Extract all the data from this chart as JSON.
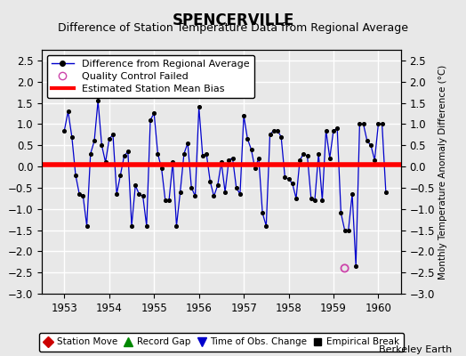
{
  "title": "SPENCERVILLE",
  "subtitle": "Difference of Station Temperature Data from Regional Average",
  "ylabel_right": "Monthly Temperature Anomaly Difference (°C)",
  "xlim": [
    1952.5,
    1960.5
  ],
  "ylim": [
    -3,
    2.75
  ],
  "yticks": [
    -3,
    -2.5,
    -2,
    -1.5,
    -1,
    -0.5,
    0,
    0.5,
    1,
    1.5,
    2,
    2.5
  ],
  "xticks": [
    1953,
    1954,
    1955,
    1956,
    1957,
    1958,
    1959,
    1960
  ],
  "bg_color": "#e8e8e8",
  "grid_color": "#ffffff",
  "line_color": "#0000cc",
  "marker_color": "#000000",
  "bias_color": "#ff0000",
  "bias_start": 1952.5,
  "bias_end": 1960.5,
  "bias_value": 0.05,
  "qc_fail_x": 1959.25,
  "qc_fail_y": -2.4,
  "data_x": [
    1953.0,
    1953.083,
    1953.167,
    1953.25,
    1953.333,
    1953.417,
    1953.5,
    1953.583,
    1953.667,
    1953.75,
    1953.833,
    1953.917,
    1954.0,
    1954.083,
    1954.167,
    1954.25,
    1954.333,
    1954.417,
    1954.5,
    1954.583,
    1954.667,
    1954.75,
    1954.833,
    1954.917,
    1955.0,
    1955.083,
    1955.167,
    1955.25,
    1955.333,
    1955.417,
    1955.5,
    1955.583,
    1955.667,
    1955.75,
    1955.833,
    1955.917,
    1956.0,
    1956.083,
    1956.167,
    1956.25,
    1956.333,
    1956.417,
    1956.5,
    1956.583,
    1956.667,
    1956.75,
    1956.833,
    1956.917,
    1957.0,
    1957.083,
    1957.167,
    1957.25,
    1957.333,
    1957.417,
    1957.5,
    1957.583,
    1957.667,
    1957.75,
    1957.833,
    1957.917,
    1958.0,
    1958.083,
    1958.167,
    1958.25,
    1958.333,
    1958.417,
    1958.5,
    1958.583,
    1958.667,
    1958.75,
    1958.833,
    1958.917,
    1959.0,
    1959.083,
    1959.167,
    1959.25,
    1959.333,
    1959.417,
    1959.5,
    1959.583,
    1959.667,
    1959.75,
    1959.833,
    1959.917,
    1960.0,
    1960.083,
    1960.167
  ],
  "data_y": [
    0.85,
    1.3,
    0.7,
    -0.2,
    -0.65,
    -0.7,
    -1.4,
    0.3,
    0.6,
    1.55,
    0.5,
    0.1,
    0.65,
    0.75,
    -0.65,
    -0.2,
    0.25,
    0.35,
    -1.4,
    -0.45,
    -0.65,
    -0.7,
    -1.4,
    1.1,
    1.25,
    0.3,
    -0.05,
    -0.8,
    -0.8,
    0.1,
    -1.4,
    -0.6,
    0.3,
    0.55,
    -0.5,
    -0.7,
    1.4,
    0.25,
    0.3,
    -0.35,
    -0.7,
    -0.45,
    0.1,
    -0.6,
    0.15,
    0.2,
    -0.5,
    -0.65,
    1.2,
    0.65,
    0.4,
    -0.05,
    0.2,
    -1.1,
    -1.4,
    0.75,
    0.85,
    0.85,
    0.7,
    -0.25,
    -0.3,
    -0.4,
    -0.75,
    0.15,
    0.3,
    0.25,
    -0.75,
    -0.8,
    0.3,
    -0.8,
    0.85,
    0.2,
    0.85,
    0.9,
    -1.1,
    -1.5,
    -1.5,
    -0.65,
    -2.35,
    1.0,
    1.0,
    0.6,
    0.5,
    0.15,
    1.0,
    1.0,
    -0.6
  ],
  "watermark": "Berkeley Earth",
  "title_fontsize": 12,
  "subtitle_fontsize": 9,
  "tick_fontsize": 8.5,
  "legend_fontsize": 8,
  "watermark_fontsize": 8
}
